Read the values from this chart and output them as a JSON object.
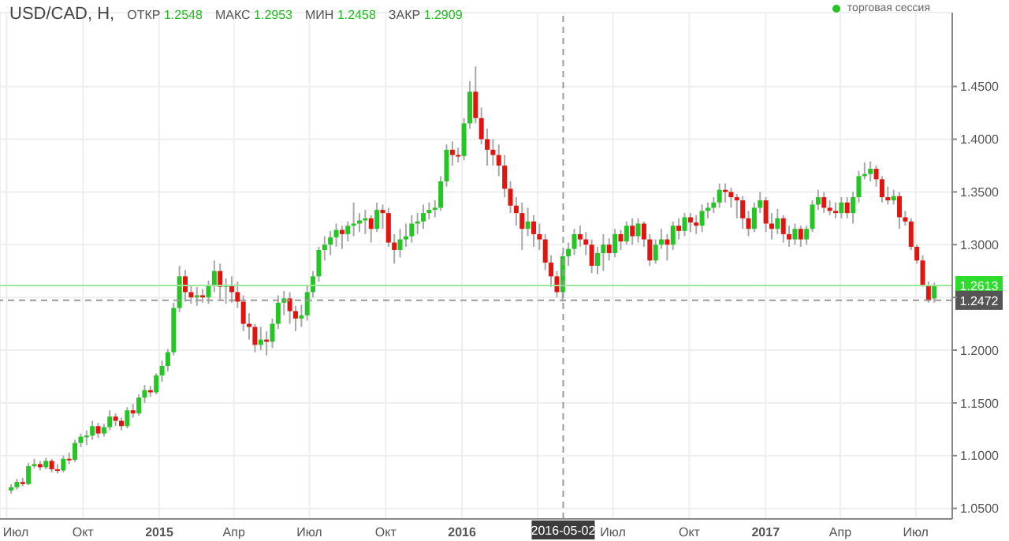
{
  "chart_data": {
    "type": "candlestick",
    "title": "USD/CAD, H,",
    "annotations": [
      "ОТКР 1.2548",
      "МАКС 1.2953",
      "МИН 1.2458",
      "ЗАКР 1.2909"
    ],
    "legend": "top right",
    "grid": true,
    "xlim": [
      "2014-06-23",
      "2017-08-14"
    ],
    "xticks": [
      {
        "value": "2014-07-01",
        "label": "Июл"
      },
      {
        "value": "2014-10-01",
        "label": "Окт"
      },
      {
        "value": "2015-01-01",
        "label": "2015"
      },
      {
        "value": "2015-04-01",
        "label": "Апр"
      },
      {
        "value": "2015-07-01",
        "label": "Июл"
      },
      {
        "value": "2015-10-01",
        "label": "Окт"
      },
      {
        "value": "2016-01-01",
        "label": "2016"
      },
      {
        "value": "2016-04-01",
        "label": null
      },
      {
        "value": "2016-07-01",
        "label": "Июл"
      },
      {
        "value": "2016-10-01",
        "label": "Окт"
      },
      {
        "value": "2017-01-01",
        "label": "2017"
      },
      {
        "value": "2017-04-01",
        "label": "Апр"
      },
      {
        "value": "2017-07-01",
        "label": "Июл"
      }
    ],
    "ylim": [
      1.04,
      1.52
    ],
    "yticks": [
      {
        "value": 1.05,
        "label": "1.0500"
      },
      {
        "value": 1.1,
        "label": "1.1000"
      },
      {
        "value": 1.15,
        "label": "1.1500"
      },
      {
        "value": 1.2,
        "label": "1.2000"
      },
      {
        "value": 1.25,
        "label": null
      },
      {
        "value": 1.3,
        "label": "1.3000"
      },
      {
        "value": 1.35,
        "label": "1.3500"
      },
      {
        "value": 1.4,
        "label": "1.4000"
      },
      {
        "value": 1.45,
        "label": "1.4500"
      }
    ],
    "ref_lines": [
      {
        "axis": "y",
        "value": 1.2613,
        "label": "1.2613",
        "color": "#9be89b",
        "line_style": "solid"
      },
      {
        "axis": "y",
        "value": 1.2472,
        "label": "1.2472",
        "color": "#9a9a9a",
        "line_style": "dashed"
      },
      {
        "axis": "x",
        "value": "2016-05-02",
        "label": "2016-05-02",
        "color": "#9a9a9a",
        "line_style": "dashed"
      }
    ],
    "x": [
      "2014-07-07",
      "2014-07-14",
      "2014-07-21",
      "2014-07-28",
      "2014-08-04",
      "2014-08-11",
      "2014-08-18",
      "2014-08-25",
      "2014-09-01",
      "2014-09-08",
      "2014-09-15",
      "2014-09-22",
      "2014-09-29",
      "2014-10-06",
      "2014-10-13",
      "2014-10-20",
      "2014-10-27",
      "2014-11-03",
      "2014-11-10",
      "2014-11-17",
      "2014-11-24",
      "2014-12-01",
      "2014-12-08",
      "2014-12-15",
      "2014-12-22",
      "2014-12-29",
      "2015-01-05",
      "2015-01-12",
      "2015-01-19",
      "2015-01-26",
      "2015-02-02",
      "2015-02-09",
      "2015-02-16",
      "2015-02-23",
      "2015-03-02",
      "2015-03-09",
      "2015-03-16",
      "2015-03-23",
      "2015-03-30",
      "2015-04-06",
      "2015-04-13",
      "2015-04-20",
      "2015-04-27",
      "2015-05-04",
      "2015-05-11",
      "2015-05-18",
      "2015-05-25",
      "2015-06-01",
      "2015-06-08",
      "2015-06-15",
      "2015-06-22",
      "2015-06-29",
      "2015-07-06",
      "2015-07-13",
      "2015-07-20",
      "2015-07-27",
      "2015-08-03",
      "2015-08-10",
      "2015-08-17",
      "2015-08-24",
      "2015-08-31",
      "2015-09-07",
      "2015-09-14",
      "2015-09-21",
      "2015-09-28",
      "2015-10-05",
      "2015-10-12",
      "2015-10-19",
      "2015-10-26",
      "2015-11-02",
      "2015-11-09",
      "2015-11-16",
      "2015-11-23",
      "2015-11-30",
      "2015-12-07",
      "2015-12-14",
      "2015-12-21",
      "2015-12-28",
      "2016-01-04",
      "2016-01-11",
      "2016-01-18",
      "2016-01-25",
      "2016-02-01",
      "2016-02-08",
      "2016-02-15",
      "2016-02-22",
      "2016-02-29",
      "2016-03-07",
      "2016-03-14",
      "2016-03-21",
      "2016-03-28",
      "2016-04-04",
      "2016-04-11",
      "2016-04-18",
      "2016-04-25",
      "2016-05-02",
      "2016-05-09",
      "2016-05-16",
      "2016-05-23",
      "2016-05-30",
      "2016-06-06",
      "2016-06-13",
      "2016-06-20",
      "2016-06-27",
      "2016-07-04",
      "2016-07-11",
      "2016-07-18",
      "2016-07-25",
      "2016-08-01",
      "2016-08-08",
      "2016-08-15",
      "2016-08-22",
      "2016-08-29",
      "2016-09-05",
      "2016-09-12",
      "2016-09-19",
      "2016-09-26",
      "2016-10-03",
      "2016-10-10",
      "2016-10-17",
      "2016-10-24",
      "2016-10-31",
      "2016-11-07",
      "2016-11-14",
      "2016-11-21",
      "2016-11-28",
      "2016-12-05",
      "2016-12-12",
      "2016-12-19",
      "2016-12-26",
      "2017-01-02",
      "2017-01-09",
      "2017-01-16",
      "2017-01-23",
      "2017-01-30",
      "2017-02-06",
      "2017-02-13",
      "2017-02-20",
      "2017-02-27",
      "2017-03-06",
      "2017-03-13",
      "2017-03-20",
      "2017-03-27",
      "2017-04-03",
      "2017-04-10",
      "2017-04-17",
      "2017-04-24",
      "2017-05-01",
      "2017-05-08",
      "2017-05-15",
      "2017-05-22",
      "2017-05-29",
      "2017-06-05",
      "2017-06-12",
      "2017-06-19",
      "2017-06-26",
      "2017-07-03",
      "2017-07-10",
      "2017-07-17",
      "2017-07-24"
    ],
    "series": [
      {
        "name": "торговая сессия",
        "color": "#26c526",
        "colors": [
          "#26c526",
          "#26c526",
          "#e3140f",
          "#26c526",
          "#26c526",
          "#e3140f",
          "#26c526",
          "#e3140f",
          "#e3140f",
          "#26c526",
          "#e3140f",
          "#26c526",
          "#26c526",
          "#26c526",
          "#26c526",
          "#e3140f",
          "#26c526",
          "#26c526",
          "#e3140f",
          "#e3140f",
          "#26c526",
          "#e3140f",
          "#26c526",
          "#26c526",
          "#e3140f",
          "#26c526",
          "#26c526",
          "#26c526",
          "#26c526",
          "#26c526",
          "#e3140f",
          "#e3140f",
          "#26c526",
          "#e3140f",
          "#26c526",
          "#26c526",
          "#e3140f",
          "#26c526",
          "#e3140f",
          "#e3140f",
          "#e3140f",
          "#e3140f",
          "#e3140f",
          "#26c526",
          "#e3140f",
          "#26c526",
          "#26c526",
          "#26c526",
          "#e3140f",
          "#e3140f",
          "#26c526",
          "#26c526",
          "#26c526",
          "#26c526",
          "#26c526",
          "#26c526",
          "#26c526",
          "#e3140f",
          "#26c526",
          "#26c526",
          "#26c526",
          "#26c526",
          "#e3140f",
          "#26c526",
          "#e3140f",
          "#e3140f",
          "#e3140f",
          "#26c526",
          "#26c526",
          "#26c526",
          "#26c526",
          "#26c526",
          "#26c526",
          "#26c526",
          "#26c526",
          "#26c526",
          "#e3140f",
          "#e3140f",
          "#26c526",
          "#26c526",
          "#e3140f",
          "#e3140f",
          "#e3140f",
          "#e3140f",
          "#e3140f",
          "#e3140f",
          "#e3140f",
          "#e3140f",
          "#e3140f",
          "#26c526",
          "#e3140f",
          "#e3140f",
          "#e3140f",
          "#e3140f",
          "#e3140f",
          "#26c526",
          "#26c526",
          "#26c526",
          "#e3140f",
          "#e3140f",
          "#e3140f",
          "#26c526",
          "#26c526",
          "#e3140f",
          "#26c526",
          "#e3140f",
          "#26c526",
          "#e3140f",
          "#26c526",
          "#e3140f",
          "#e3140f",
          "#26c526",
          "#26c526",
          "#e3140f",
          "#26c526",
          "#e3140f",
          "#26c526",
          "#e3140f",
          "#e3140f",
          "#26c526",
          "#26c526",
          "#26c526",
          "#26c526",
          "#e3140f",
          "#e3140f",
          "#e3140f",
          "#e3140f",
          "#e3140f",
          "#26c526",
          "#26c526",
          "#e3140f",
          "#e3140f",
          "#26c526",
          "#e3140f",
          "#e3140f",
          "#26c526",
          "#e3140f",
          "#26c526",
          "#26c526",
          "#26c526",
          "#e3140f",
          "#e3140f",
          "#e3140f",
          "#26c526",
          "#e3140f",
          "#26c526",
          "#26c526",
          "#26c526",
          "#26c526",
          "#e3140f",
          "#e3140f",
          "#e3140f",
          "#26c526",
          "#e3140f",
          "#e3140f",
          "#e3140f",
          "#e3140f",
          "#e3140f",
          "#e3140f",
          "#26c526"
        ],
        "ohlc": [
          [
            1.067,
            1.073,
            1.064,
            1.07
          ],
          [
            1.07,
            1.078,
            1.068,
            1.075
          ],
          [
            1.075,
            1.079,
            1.071,
            1.073
          ],
          [
            1.073,
            1.093,
            1.072,
            1.09
          ],
          [
            1.09,
            1.097,
            1.088,
            1.092
          ],
          [
            1.092,
            1.095,
            1.086,
            1.089
          ],
          [
            1.089,
            1.098,
            1.087,
            1.095
          ],
          [
            1.095,
            1.097,
            1.084,
            1.087
          ],
          [
            1.087,
            1.092,
            1.083,
            1.086
          ],
          [
            1.086,
            1.1,
            1.084,
            1.097
          ],
          [
            1.097,
            1.103,
            1.092,
            1.096
          ],
          [
            1.096,
            1.115,
            1.094,
            1.112
          ],
          [
            1.112,
            1.121,
            1.108,
            1.118
          ],
          [
            1.118,
            1.124,
            1.11,
            1.119
          ],
          [
            1.119,
            1.133,
            1.115,
            1.128
          ],
          [
            1.128,
            1.131,
            1.117,
            1.121
          ],
          [
            1.121,
            1.13,
            1.118,
            1.127
          ],
          [
            1.127,
            1.143,
            1.124,
            1.137
          ],
          [
            1.137,
            1.14,
            1.128,
            1.133
          ],
          [
            1.133,
            1.136,
            1.124,
            1.128
          ],
          [
            1.128,
            1.146,
            1.126,
            1.143
          ],
          [
            1.143,
            1.149,
            1.136,
            1.14
          ],
          [
            1.14,
            1.158,
            1.138,
            1.155
          ],
          [
            1.155,
            1.167,
            1.15,
            1.162
          ],
          [
            1.162,
            1.166,
            1.156,
            1.16
          ],
          [
            1.16,
            1.178,
            1.158,
            1.176
          ],
          [
            1.176,
            1.19,
            1.17,
            1.185
          ],
          [
            1.185,
            1.201,
            1.18,
            1.198
          ],
          [
            1.198,
            1.245,
            1.195,
            1.24
          ],
          [
            1.24,
            1.28,
            1.236,
            1.27
          ],
          [
            1.27,
            1.276,
            1.246,
            1.255
          ],
          [
            1.255,
            1.262,
            1.244,
            1.25
          ],
          [
            1.25,
            1.26,
            1.242,
            1.252
          ],
          [
            1.252,
            1.258,
            1.245,
            1.25
          ],
          [
            1.25,
            1.266,
            1.244,
            1.262
          ],
          [
            1.262,
            1.285,
            1.255,
            1.275
          ],
          [
            1.275,
            1.282,
            1.248,
            1.26
          ],
          [
            1.26,
            1.268,
            1.244,
            1.262
          ],
          [
            1.262,
            1.27,
            1.245,
            1.255
          ],
          [
            1.255,
            1.265,
            1.24,
            1.246
          ],
          [
            1.246,
            1.252,
            1.218,
            1.225
          ],
          [
            1.225,
            1.235,
            1.21,
            1.222
          ],
          [
            1.222,
            1.225,
            1.198,
            1.205
          ],
          [
            1.205,
            1.222,
            1.2,
            1.21
          ],
          [
            1.21,
            1.218,
            1.195,
            1.208
          ],
          [
            1.208,
            1.23,
            1.202,
            1.225
          ],
          [
            1.225,
            1.252,
            1.22,
            1.245
          ],
          [
            1.245,
            1.256,
            1.233,
            1.249
          ],
          [
            1.249,
            1.255,
            1.225,
            1.237
          ],
          [
            1.237,
            1.242,
            1.218,
            1.23
          ],
          [
            1.23,
            1.243,
            1.222,
            1.233
          ],
          [
            1.233,
            1.262,
            1.228,
            1.255
          ],
          [
            1.255,
            1.275,
            1.25,
            1.27
          ],
          [
            1.27,
            1.298,
            1.265,
            1.295
          ],
          [
            1.295,
            1.308,
            1.285,
            1.3
          ],
          [
            1.3,
            1.313,
            1.29,
            1.307
          ],
          [
            1.307,
            1.32,
            1.298,
            1.314
          ],
          [
            1.314,
            1.318,
            1.296,
            1.31
          ],
          [
            1.31,
            1.322,
            1.303,
            1.318
          ],
          [
            1.318,
            1.34,
            1.308,
            1.32
          ],
          [
            1.32,
            1.33,
            1.312,
            1.323
          ],
          [
            1.323,
            1.333,
            1.31,
            1.325
          ],
          [
            1.325,
            1.328,
            1.302,
            1.315
          ],
          [
            1.315,
            1.34,
            1.312,
            1.333
          ],
          [
            1.333,
            1.338,
            1.315,
            1.33
          ],
          [
            1.33,
            1.335,
            1.298,
            1.302
          ],
          [
            1.302,
            1.31,
            1.282,
            1.295
          ],
          [
            1.295,
            1.315,
            1.288,
            1.305
          ],
          [
            1.305,
            1.32,
            1.298,
            1.308
          ],
          [
            1.308,
            1.328,
            1.302,
            1.32
          ],
          [
            1.32,
            1.33,
            1.31,
            1.322
          ],
          [
            1.322,
            1.338,
            1.315,
            1.33
          ],
          [
            1.33,
            1.34,
            1.324,
            1.333
          ],
          [
            1.333,
            1.342,
            1.326,
            1.335
          ],
          [
            1.335,
            1.365,
            1.332,
            1.36
          ],
          [
            1.36,
            1.395,
            1.355,
            1.39
          ],
          [
            1.39,
            1.398,
            1.375,
            1.385
          ],
          [
            1.385,
            1.392,
            1.378,
            1.384
          ],
          [
            1.384,
            1.42,
            1.38,
            1.415
          ],
          [
            1.415,
            1.455,
            1.41,
            1.445
          ],
          [
            1.445,
            1.469,
            1.415,
            1.42
          ],
          [
            1.42,
            1.43,
            1.395,
            1.4
          ],
          [
            1.4,
            1.41,
            1.375,
            1.39
          ],
          [
            1.39,
            1.4,
            1.375,
            1.385
          ],
          [
            1.385,
            1.395,
            1.365,
            1.375
          ],
          [
            1.375,
            1.385,
            1.345,
            1.353
          ],
          [
            1.353,
            1.36,
            1.33,
            1.337
          ],
          [
            1.337,
            1.345,
            1.318,
            1.33
          ],
          [
            1.33,
            1.34,
            1.295,
            1.315
          ],
          [
            1.315,
            1.335,
            1.308,
            1.322
          ],
          [
            1.322,
            1.328,
            1.298,
            1.31
          ],
          [
            1.31,
            1.32,
            1.295,
            1.305
          ],
          [
            1.305,
            1.31,
            1.276,
            1.283
          ],
          [
            1.283,
            1.29,
            1.26,
            1.27
          ],
          [
            1.27,
            1.275,
            1.25,
            1.255
          ],
          [
            1.255,
            1.292,
            1.246,
            1.289
          ],
          [
            1.289,
            1.302,
            1.28,
            1.296
          ],
          [
            1.296,
            1.315,
            1.29,
            1.31
          ],
          [
            1.31,
            1.318,
            1.298,
            1.305
          ],
          [
            1.305,
            1.312,
            1.29,
            1.3
          ],
          [
            1.3,
            1.305,
            1.273,
            1.28
          ],
          [
            1.28,
            1.298,
            1.272,
            1.292
          ],
          [
            1.292,
            1.31,
            1.275,
            1.3
          ],
          [
            1.3,
            1.306,
            1.285,
            1.292
          ],
          [
            1.292,
            1.315,
            1.288,
            1.31
          ],
          [
            1.31,
            1.314,
            1.295,
            1.303
          ],
          [
            1.303,
            1.322,
            1.3,
            1.318
          ],
          [
            1.318,
            1.325,
            1.3,
            1.308
          ],
          [
            1.308,
            1.325,
            1.302,
            1.32
          ],
          [
            1.32,
            1.322,
            1.298,
            1.305
          ],
          [
            1.305,
            1.31,
            1.28,
            1.285
          ],
          [
            1.285,
            1.305,
            1.282,
            1.3
          ],
          [
            1.3,
            1.315,
            1.296,
            1.305
          ],
          [
            1.305,
            1.31,
            1.285,
            1.3
          ],
          [
            1.3,
            1.322,
            1.295,
            1.318
          ],
          [
            1.318,
            1.325,
            1.305,
            1.313
          ],
          [
            1.313,
            1.33,
            1.308,
            1.326
          ],
          [
            1.326,
            1.33,
            1.312,
            1.321
          ],
          [
            1.321,
            1.328,
            1.31,
            1.318
          ],
          [
            1.318,
            1.338,
            1.312,
            1.332
          ],
          [
            1.332,
            1.34,
            1.325,
            1.335
          ],
          [
            1.335,
            1.345,
            1.33,
            1.34
          ],
          [
            1.34,
            1.358,
            1.335,
            1.352
          ],
          [
            1.352,
            1.358,
            1.34,
            1.35
          ],
          [
            1.35,
            1.354,
            1.335,
            1.345
          ],
          [
            1.345,
            1.348,
            1.325,
            1.342
          ],
          [
            1.342,
            1.346,
            1.315,
            1.325
          ],
          [
            1.325,
            1.332,
            1.308,
            1.315
          ],
          [
            1.315,
            1.34,
            1.312,
            1.335
          ],
          [
            1.335,
            1.35,
            1.33,
            1.342
          ],
          [
            1.342,
            1.345,
            1.312,
            1.32
          ],
          [
            1.32,
            1.33,
            1.305,
            1.315
          ],
          [
            1.315,
            1.334,
            1.31,
            1.325
          ],
          [
            1.325,
            1.328,
            1.302,
            1.31
          ],
          [
            1.31,
            1.318,
            1.298,
            1.305
          ],
          [
            1.305,
            1.32,
            1.3,
            1.315
          ],
          [
            1.315,
            1.318,
            1.298,
            1.305
          ],
          [
            1.305,
            1.318,
            1.3,
            1.315
          ],
          [
            1.315,
            1.342,
            1.312,
            1.338
          ],
          [
            1.338,
            1.352,
            1.333,
            1.345
          ],
          [
            1.345,
            1.35,
            1.33,
            1.335
          ],
          [
            1.335,
            1.342,
            1.328,
            1.332
          ],
          [
            1.332,
            1.34,
            1.325,
            1.33
          ],
          [
            1.33,
            1.345,
            1.325,
            1.34
          ],
          [
            1.34,
            1.345,
            1.325,
            1.33
          ],
          [
            1.33,
            1.35,
            1.32,
            1.345
          ],
          [
            1.345,
            1.37,
            1.34,
            1.365
          ],
          [
            1.365,
            1.378,
            1.362,
            1.367
          ],
          [
            1.367,
            1.379,
            1.36,
            1.372
          ],
          [
            1.372,
            1.375,
            1.355,
            1.362
          ],
          [
            1.362,
            1.365,
            1.34,
            1.345
          ],
          [
            1.345,
            1.355,
            1.338,
            1.342
          ],
          [
            1.342,
            1.352,
            1.338,
            1.346
          ],
          [
            1.346,
            1.35,
            1.315,
            1.326
          ],
          [
            1.326,
            1.332,
            1.318,
            1.322
          ],
          [
            1.322,
            1.325,
            1.295,
            1.298
          ],
          [
            1.298,
            1.3,
            1.282,
            1.285
          ],
          [
            1.285,
            1.29,
            1.26,
            1.262
          ],
          [
            1.262,
            1.265,
            1.245,
            1.247
          ],
          [
            1.249,
            1.264,
            1.245,
            1.261
          ]
        ]
      }
    ]
  }
}
